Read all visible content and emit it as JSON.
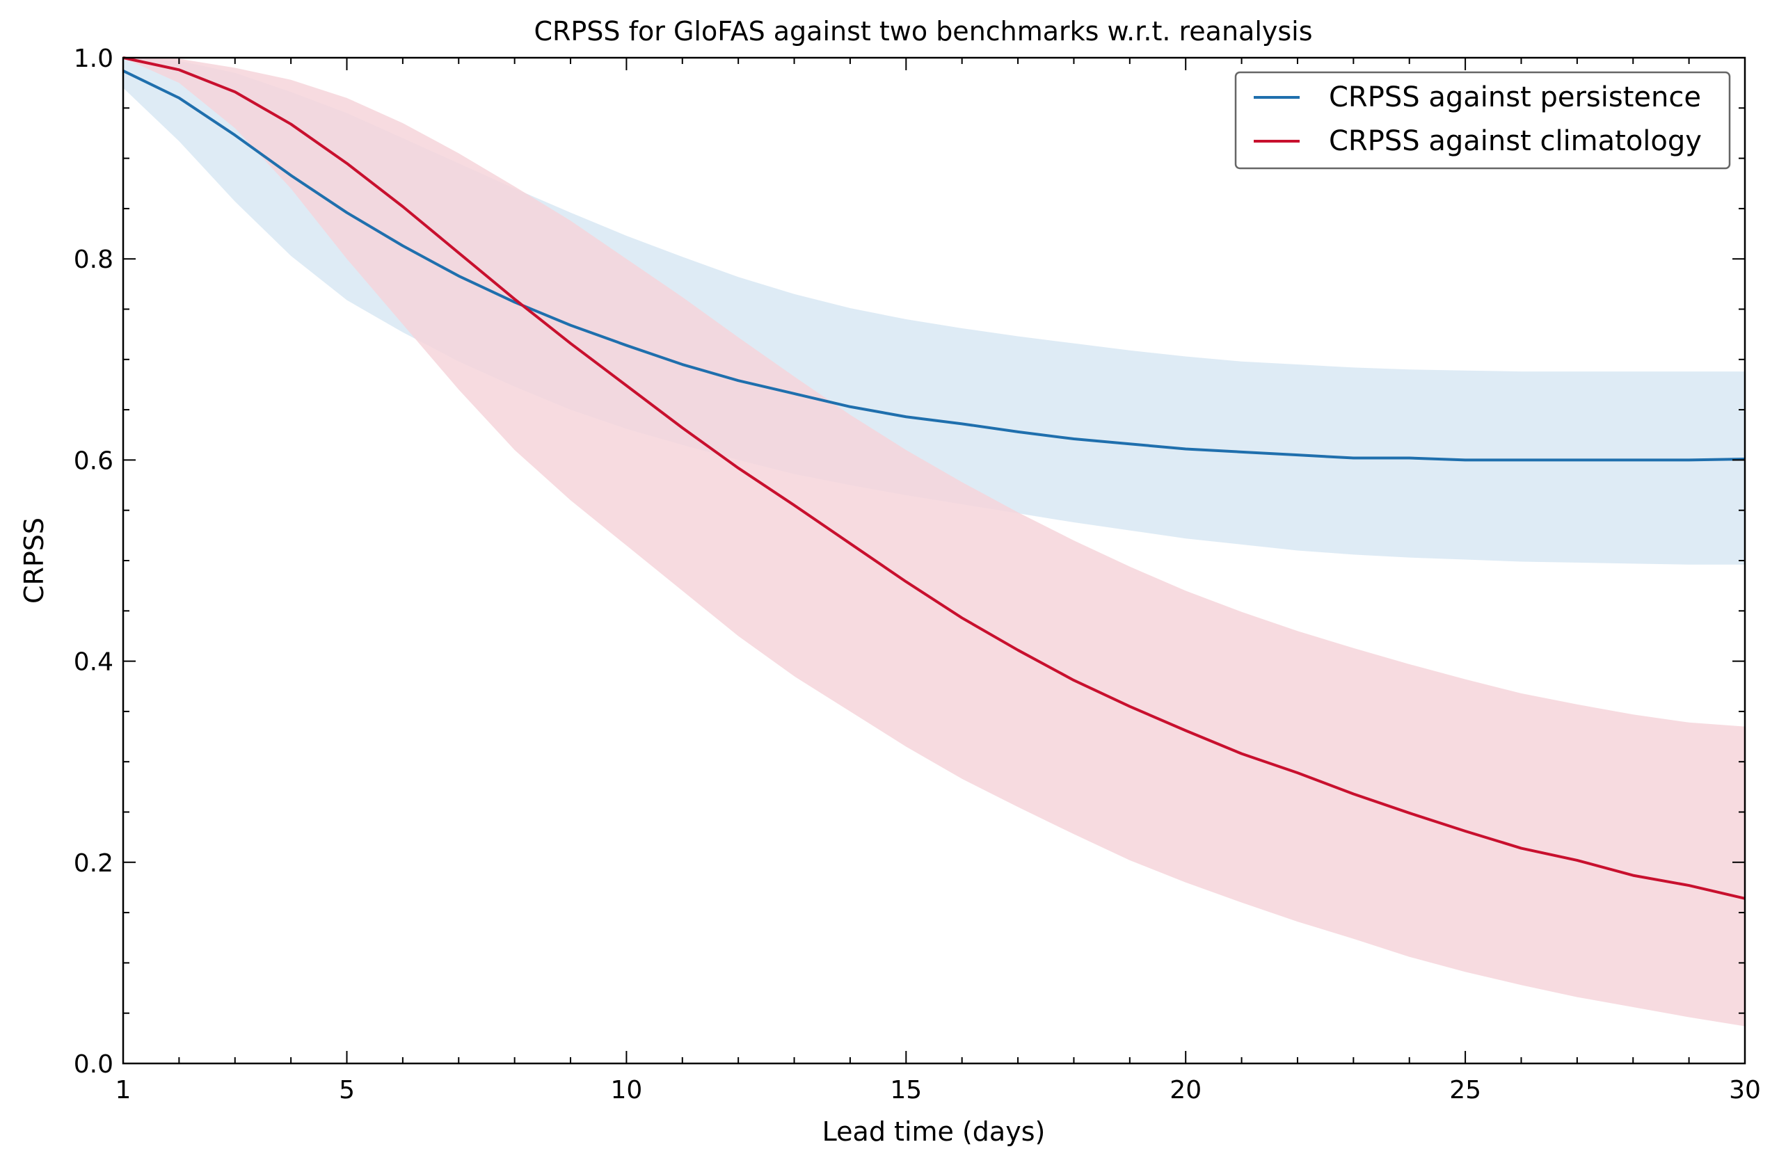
{
  "chart_data": {
    "type": "line",
    "title": "CRPSS for GloFAS against two benchmarks w.r.t. reanalysis",
    "xlabel": "Lead time (days)",
    "ylabel": "CRPSS",
    "xlim": [
      1,
      30
    ],
    "ylim": [
      0.0,
      1.0
    ],
    "x_ticks": [
      1,
      5,
      10,
      15,
      20,
      25,
      30
    ],
    "x_tick_labels": [
      "1",
      "5",
      "10",
      "15",
      "20",
      "25",
      "30"
    ],
    "y_ticks": [
      0.0,
      0.2,
      0.4,
      0.6,
      0.8,
      1.0
    ],
    "y_tick_labels": [
      "0.0",
      "0.2",
      "0.4",
      "0.6",
      "0.8",
      "1.0"
    ],
    "grid": false,
    "legend_position": "top-right",
    "x": [
      1,
      2,
      3,
      4,
      5,
      6,
      7,
      8,
      9,
      10,
      11,
      12,
      13,
      14,
      15,
      16,
      17,
      18,
      19,
      20,
      21,
      22,
      23,
      24,
      25,
      26,
      27,
      28,
      29,
      30
    ],
    "series": [
      {
        "name": "CRPSS against persistence",
        "color": "#1f6fad",
        "band_color": "#d8e8f3",
        "values": [
          0.987,
          0.96,
          0.923,
          0.883,
          0.846,
          0.813,
          0.783,
          0.757,
          0.734,
          0.714,
          0.695,
          0.679,
          0.666,
          0.653,
          0.643,
          0.636,
          0.628,
          0.621,
          0.616,
          0.611,
          0.608,
          0.605,
          0.602,
          0.602,
          0.6,
          0.6,
          0.6,
          0.6,
          0.6,
          0.601
        ],
        "lower": [
          0.97,
          0.917,
          0.857,
          0.803,
          0.759,
          0.727,
          0.698,
          0.673,
          0.65,
          0.631,
          0.615,
          0.6,
          0.586,
          0.575,
          0.565,
          0.556,
          0.547,
          0.538,
          0.53,
          0.522,
          0.516,
          0.51,
          0.506,
          0.503,
          0.501,
          0.499,
          0.498,
          0.497,
          0.496,
          0.496
        ],
        "upper": [
          1.0,
          0.997,
          0.985,
          0.966,
          0.945,
          0.92,
          0.895,
          0.87,
          0.846,
          0.823,
          0.802,
          0.782,
          0.765,
          0.751,
          0.74,
          0.731,
          0.723,
          0.716,
          0.709,
          0.703,
          0.698,
          0.695,
          0.692,
          0.69,
          0.689,
          0.688,
          0.688,
          0.688,
          0.688,
          0.688
        ]
      },
      {
        "name": "CRPSS against climatology",
        "color": "#c8102e",
        "band_color": "#f6d5db",
        "values": [
          1.0,
          0.988,
          0.966,
          0.934,
          0.895,
          0.852,
          0.806,
          0.76,
          0.716,
          0.674,
          0.632,
          0.592,
          0.555,
          0.517,
          0.479,
          0.443,
          0.411,
          0.381,
          0.355,
          0.331,
          0.308,
          0.289,
          0.268,
          0.249,
          0.231,
          0.214,
          0.202,
          0.187,
          0.177,
          0.164
        ],
        "lower": [
          1.0,
          0.975,
          0.93,
          0.87,
          0.8,
          0.735,
          0.67,
          0.61,
          0.56,
          0.515,
          0.47,
          0.425,
          0.385,
          0.35,
          0.315,
          0.283,
          0.255,
          0.228,
          0.202,
          0.18,
          0.16,
          0.141,
          0.124,
          0.106,
          0.091,
          0.078,
          0.066,
          0.056,
          0.046,
          0.037
        ],
        "upper": [
          1.0,
          0.999,
          0.99,
          0.978,
          0.96,
          0.935,
          0.905,
          0.872,
          0.838,
          0.8,
          0.762,
          0.722,
          0.683,
          0.645,
          0.61,
          0.578,
          0.548,
          0.52,
          0.494,
          0.47,
          0.449,
          0.43,
          0.413,
          0.397,
          0.382,
          0.368,
          0.357,
          0.347,
          0.339,
          0.335
        ]
      }
    ]
  }
}
